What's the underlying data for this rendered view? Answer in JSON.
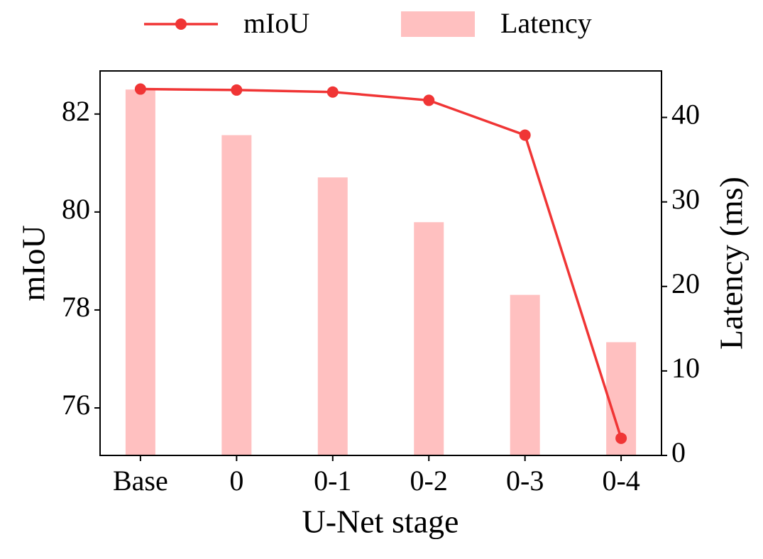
{
  "chart_data": {
    "type": "combo",
    "x_label": "U-Net stage",
    "y_label": "mIoU",
    "y2_label": "Latency (ms)",
    "categories": [
      "Base",
      "0",
      "0-1",
      "0-2",
      "0-3",
      "0-4"
    ],
    "series": [
      {
        "name": "mIoU",
        "type": "line",
        "color": "#f03535",
        "values": [
          82.51,
          82.49,
          82.45,
          82.28,
          81.57,
          75.38
        ]
      },
      {
        "name": "Latency",
        "type": "bar",
        "axis": "y2",
        "color": "#ffc0c0",
        "values": [
          43.3,
          37.9,
          32.9,
          27.6,
          19.0,
          13.4
        ]
      }
    ],
    "ylim": [
      75.03,
      82.88
    ],
    "yticks": [
      76,
      78,
      80,
      82
    ],
    "y2lim": [
      0,
      45.5
    ],
    "y2ticks": [
      0,
      10,
      20,
      30,
      40
    ]
  }
}
